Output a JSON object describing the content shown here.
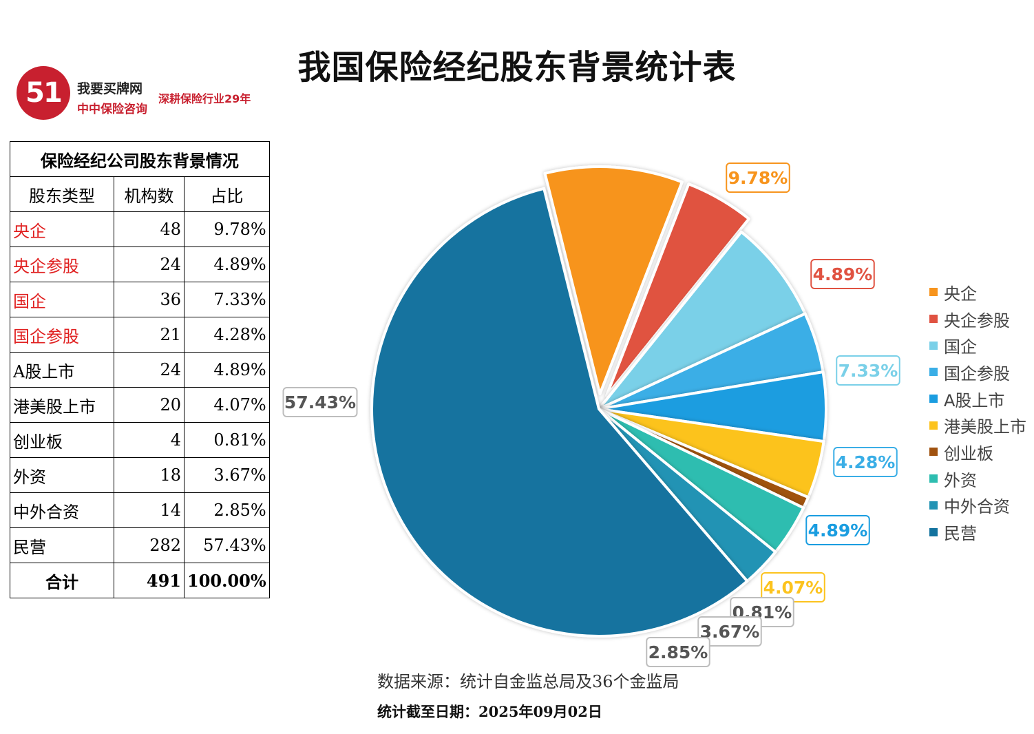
{
  "title": "我国保险经纪股东背景统计表",
  "logo": {
    "mark": "51",
    "name": "我要买牌网",
    "sub": "中中保险咨询",
    "slogan": "深耕保险行业29年"
  },
  "table": {
    "caption": "保险经纪公司股东背景情况",
    "headers": [
      "股东类型",
      "机构数",
      "占比"
    ],
    "rows": [
      {
        "type": "央企",
        "count": "48",
        "pct": "9.78%",
        "highlight": true
      },
      {
        "type": "央企参股",
        "count": "24",
        "pct": "4.89%",
        "highlight": true
      },
      {
        "type": "国企",
        "count": "36",
        "pct": "7.33%",
        "highlight": true
      },
      {
        "type": "国企参股",
        "count": "21",
        "pct": "4.28%",
        "highlight": true
      },
      {
        "type": "A股上市",
        "count": "24",
        "pct": "4.89%",
        "highlight": false
      },
      {
        "type": "港美股上市",
        "count": "20",
        "pct": "4.07%",
        "highlight": false
      },
      {
        "type": "创业板",
        "count": "4",
        "pct": "0.81%",
        "highlight": false
      },
      {
        "type": "外资",
        "count": "18",
        "pct": "3.67%",
        "highlight": false
      },
      {
        "type": "中外合资",
        "count": "14",
        "pct": "2.85%",
        "highlight": false
      },
      {
        "type": "民营",
        "count": "282",
        "pct": "57.43%",
        "highlight": false
      }
    ],
    "total": {
      "label": "合计",
      "count": "491",
      "pct": "100.00%"
    }
  },
  "chart_data": {
    "type": "pie",
    "categories": [
      "央企",
      "央企参股",
      "国企",
      "国企参股",
      "A股上市",
      "港美股上市",
      "创业板",
      "外资",
      "中外合资",
      "民营"
    ],
    "values": [
      9.78,
      4.89,
      7.33,
      4.28,
      4.89,
      4.07,
      0.81,
      3.67,
      2.85,
      57.43
    ],
    "labels": [
      "9.78%",
      "4.89%",
      "7.33%",
      "4.28%",
      "4.89%",
      "4.07%",
      "0.81%",
      "3.67%",
      "2.85%",
      "57.43%"
    ],
    "colors": [
      "#f7941d",
      "#e05241",
      "#7ad0e8",
      "#3aaee6",
      "#1a9de0",
      "#fcc31e",
      "#a0520f",
      "#2dbdb0",
      "#2293b4",
      "#13739f"
    ],
    "label_border_colors": [
      "#f7941d",
      "#e05241",
      "#7ad0e8",
      "#3aaee6",
      "#1a9de0",
      "#fcc31e",
      "#bdbdbd",
      "#bdbdbd",
      "#bdbdbd",
      "#bdbdbd"
    ],
    "label_text_colors": [
      "#f7941d",
      "#e05241",
      "#7ad0e8",
      "#3aaee6",
      "#1a9de0",
      "#fcc31e",
      "#555555",
      "#555555",
      "#555555",
      "#555555"
    ],
    "exploded": [
      true,
      true,
      false,
      false,
      false,
      false,
      false,
      false,
      false,
      false
    ],
    "legend_position": "right"
  },
  "source": "数据来源：统计自金监总局及36个金监局",
  "date": "统计截至日期：2025年09月02日"
}
